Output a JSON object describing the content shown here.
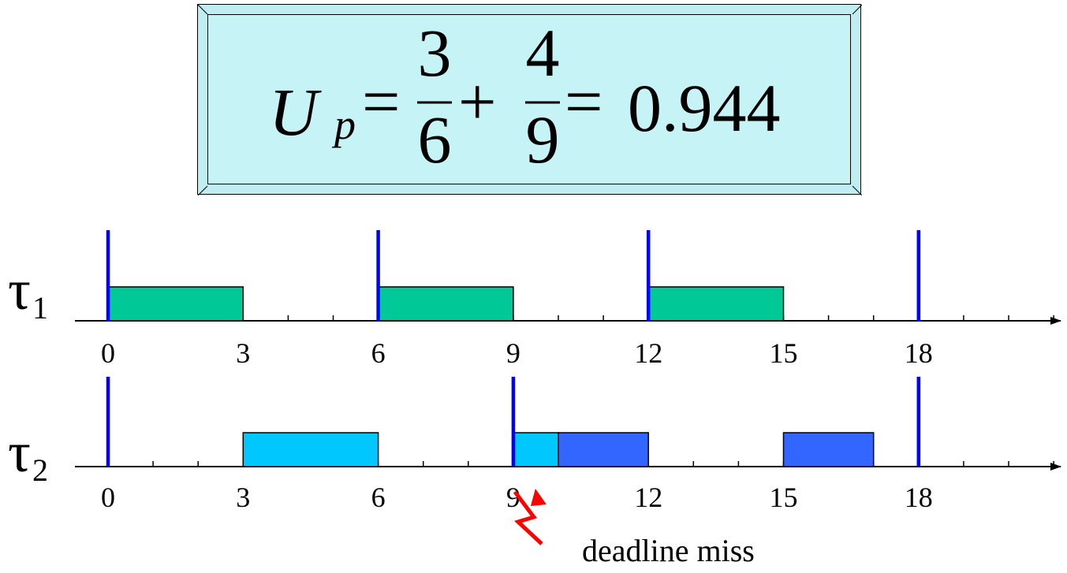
{
  "formula": {
    "lhs": "U",
    "lhs_sub": "p",
    "eq1": "=",
    "frac1_num": "3",
    "frac1_den": "6",
    "plus": "+",
    "frac2_num": "4",
    "frac2_den": "9",
    "eq2": "=",
    "result": "0.944"
  },
  "tasks": [
    {
      "label": "τ",
      "sub": "1",
      "releases": [
        0,
        6,
        12,
        18
      ],
      "jobs": [
        {
          "start": 0,
          "end": 3,
          "color": "#00c896"
        },
        {
          "start": 6,
          "end": 9,
          "color": "#00c896"
        },
        {
          "start": 12,
          "end": 15,
          "color": "#00c896"
        }
      ],
      "tick_labels": [
        "0",
        "3",
        "6",
        "9",
        "12",
        "15",
        "18"
      ]
    },
    {
      "label": "τ",
      "sub": "2",
      "releases": [
        0,
        9,
        18
      ],
      "jobs": [
        {
          "start": 3,
          "end": 6,
          "color": "#00c8ff"
        },
        {
          "start": 9,
          "end": 10,
          "color": "#00c8ff"
        },
        {
          "start": 10,
          "end": 12,
          "color": "#3366ff"
        },
        {
          "start": 15,
          "end": 17,
          "color": "#3366ff"
        }
      ],
      "tick_labels": [
        "0",
        "3",
        "6",
        "9",
        "12",
        "15",
        "18"
      ]
    }
  ],
  "axis": {
    "min": 0,
    "max": 21,
    "minor_step": 1
  },
  "annotation": {
    "text": "deadline miss",
    "at": 9,
    "color": "#ff0000"
  },
  "colors": {
    "release_line": "#0000ff",
    "axis": "#000000"
  }
}
